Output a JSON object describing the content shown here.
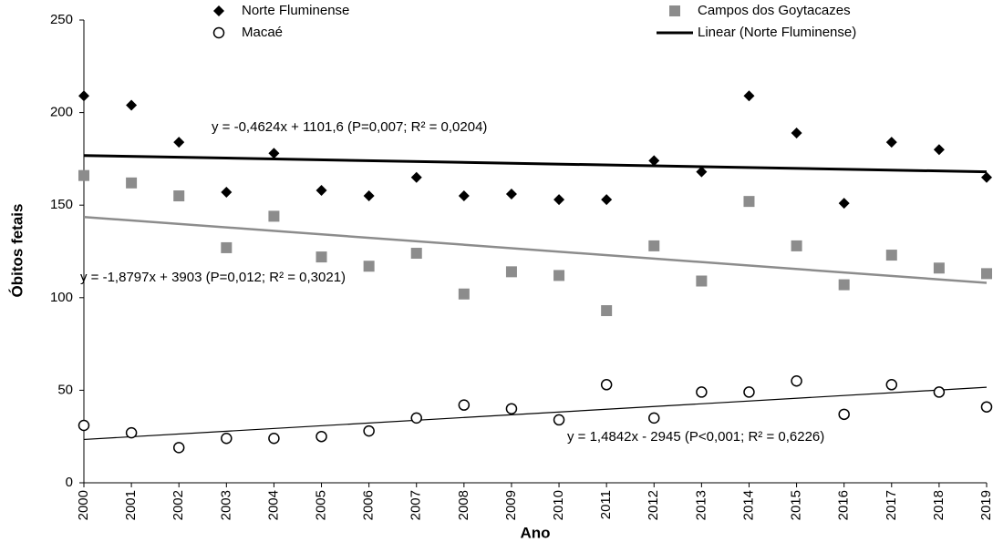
{
  "chart_data": {
    "type": "scatter",
    "x_title": "Ano",
    "y_title": "Óbitos fetais",
    "x": [
      2000,
      2001,
      2002,
      2003,
      2004,
      2005,
      2006,
      2007,
      2008,
      2009,
      2010,
      2011,
      2012,
      2013,
      2014,
      2015,
      2016,
      2017,
      2018,
      2019
    ],
    "xlim": [
      2000,
      2019
    ],
    "xticks": [
      2000,
      2001,
      2002,
      2003,
      2004,
      2005,
      2006,
      2007,
      2008,
      2009,
      2010,
      2011,
      2012,
      2013,
      2014,
      2015,
      2016,
      2017,
      2018,
      2019
    ],
    "ylim": [
      0,
      250
    ],
    "yticks": [
      0,
      50,
      100,
      150,
      200,
      250
    ],
    "grid": false,
    "series": [
      {
        "name": "Norte Fluminense",
        "color": "#000000",
        "marker": "diamond",
        "values": [
          209,
          204,
          184,
          157,
          178,
          158,
          155,
          165,
          155,
          156,
          153,
          153,
          174,
          168,
          209,
          189,
          151,
          184,
          180,
          165
        ]
      },
      {
        "name": "Campos dos Goytacazes",
        "color": "#8c8c8c",
        "marker": "square",
        "values": [
          166,
          162,
          155,
          127,
          144,
          122,
          117,
          124,
          102,
          114,
          112,
          93,
          128,
          109,
          152,
          128,
          107,
          123,
          116,
          113
        ]
      },
      {
        "name": "Macaé",
        "color": "#000000",
        "marker": "circle-open",
        "values": [
          31,
          27,
          19,
          24,
          24,
          25,
          28,
          35,
          42,
          40,
          34,
          53,
          35,
          49,
          49,
          55,
          37,
          53,
          49,
          41
        ]
      }
    ],
    "trendlines": [
      {
        "name": "Linear (Norte Fluminense)",
        "color": "#000000",
        "width": 3,
        "x": [
          2000,
          2019
        ],
        "values": [
          176.8,
          168.0
        ],
        "label": "y = -0,4624x + 1101,6 (P=0,007; R² = 0,0204)"
      },
      {
        "color": "#8c8c8c",
        "width": 2.5,
        "x": [
          2000,
          2019
        ],
        "values": [
          143.6,
          108.0
        ],
        "label": "y = -1,8797x + 3903 (P=0,012; R² = 0,3021)"
      },
      {
        "color": "#000000",
        "width": 1.2,
        "x": [
          2000,
          2019
        ],
        "values": [
          23.4,
          51.6
        ],
        "label": "y = 1,4842x - 2945 (P<0,001; R² = 0,6226)"
      }
    ]
  }
}
